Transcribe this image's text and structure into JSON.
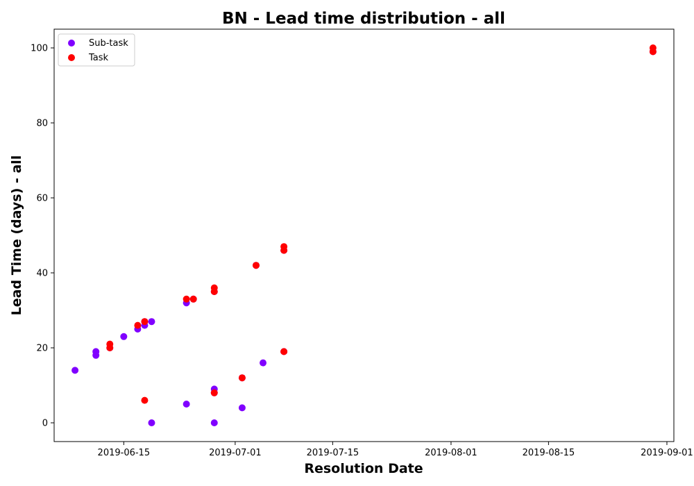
{
  "chart_data": {
    "type": "scatter",
    "title": "BN - Lead time distribution - all",
    "xlabel": "Resolution Date",
    "ylabel": "Lead Time (days) - all",
    "xlim": [
      "2019-06-05",
      "2019-09-02"
    ],
    "ylim": [
      -5,
      105
    ],
    "x_ticks": [
      "2019-06-15",
      "2019-07-01",
      "2019-07-15",
      "2019-08-01",
      "2019-08-15",
      "2019-09-01"
    ],
    "y_ticks": [
      0,
      20,
      40,
      60,
      80,
      100
    ],
    "legend_position": "top-left",
    "series": [
      {
        "name": "Sub-task",
        "color": "#8000ff",
        "points": [
          {
            "x": "2019-06-08",
            "y": 14
          },
          {
            "x": "2019-06-11",
            "y": 18
          },
          {
            "x": "2019-06-11",
            "y": 19
          },
          {
            "x": "2019-06-13",
            "y": 20
          },
          {
            "x": "2019-06-15",
            "y": 23
          },
          {
            "x": "2019-06-17",
            "y": 25
          },
          {
            "x": "2019-06-18",
            "y": 26
          },
          {
            "x": "2019-06-18",
            "y": 27
          },
          {
            "x": "2019-06-19",
            "y": 27
          },
          {
            "x": "2019-06-19",
            "y": 0
          },
          {
            "x": "2019-06-24",
            "y": 32
          },
          {
            "x": "2019-06-24",
            "y": 5
          },
          {
            "x": "2019-06-25",
            "y": 33
          },
          {
            "x": "2019-06-28",
            "y": 35
          },
          {
            "x": "2019-06-28",
            "y": 9
          },
          {
            "x": "2019-06-28",
            "y": 8
          },
          {
            "x": "2019-06-28",
            "y": 0
          },
          {
            "x": "2019-07-02",
            "y": 12
          },
          {
            "x": "2019-07-02",
            "y": 4
          },
          {
            "x": "2019-07-04",
            "y": 42
          },
          {
            "x": "2019-07-05",
            "y": 16
          },
          {
            "x": "2019-07-08",
            "y": 46
          },
          {
            "x": "2019-07-08",
            "y": 19
          },
          {
            "x": "2019-08-30",
            "y": 99
          }
        ]
      },
      {
        "name": "Task",
        "color": "#ff0000",
        "points": [
          {
            "x": "2019-06-13",
            "y": 20
          },
          {
            "x": "2019-06-13",
            "y": 21
          },
          {
            "x": "2019-06-17",
            "y": 26
          },
          {
            "x": "2019-06-18",
            "y": 27
          },
          {
            "x": "2019-06-18",
            "y": 6
          },
          {
            "x": "2019-06-24",
            "y": 33
          },
          {
            "x": "2019-06-25",
            "y": 33
          },
          {
            "x": "2019-06-28",
            "y": 36
          },
          {
            "x": "2019-06-28",
            "y": 35
          },
          {
            "x": "2019-06-28",
            "y": 8
          },
          {
            "x": "2019-07-02",
            "y": 12
          },
          {
            "x": "2019-07-04",
            "y": 42
          },
          {
            "x": "2019-07-08",
            "y": 47
          },
          {
            "x": "2019-07-08",
            "y": 46
          },
          {
            "x": "2019-07-08",
            "y": 19
          },
          {
            "x": "2019-08-30",
            "y": 100
          },
          {
            "x": "2019-08-30",
            "y": 99
          }
        ]
      }
    ]
  }
}
